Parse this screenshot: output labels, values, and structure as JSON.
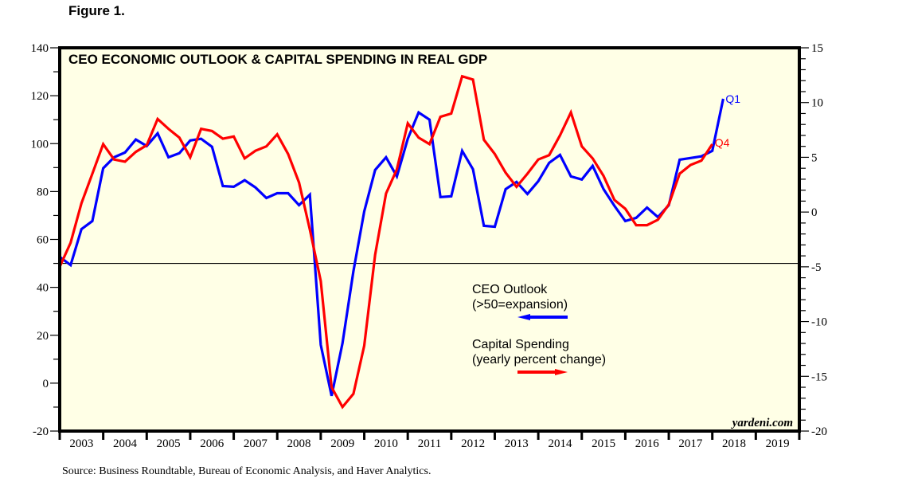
{
  "figure_label": "Figure 1.",
  "source_note": "Source: Business Roundtable, Bureau of Economic Analysis, and Haver Analytics.",
  "watermark": "yardeni.com",
  "colors": {
    "background": "#ffffe6",
    "ceo_outlook": "#0000ff",
    "capital_spending": "#ff0000",
    "frame": "#000000"
  },
  "chart_data": {
    "type": "line",
    "title": "CEO ECONOMIC OUTLOOK & CAPITAL SPENDING IN REAL GDP",
    "xlabel": "",
    "ylabel_left": "",
    "ylabel_right": "",
    "xlim": [
      2003.0,
      2020.0
    ],
    "ylim_left": [
      -20,
      140
    ],
    "ylim_right": [
      -20,
      15
    ],
    "x_tick_labels": [
      "2003",
      "2004",
      "2005",
      "2006",
      "2007",
      "2008",
      "2009",
      "2010",
      "2011",
      "2012",
      "2013",
      "2014",
      "2015",
      "2016",
      "2017",
      "2018",
      "2019"
    ],
    "y_left_ticks": [
      140,
      120,
      100,
      80,
      60,
      40,
      20,
      0,
      -20
    ],
    "y_left_tick_labels": [
      "140",
      "120",
      "100",
      "80",
      "60",
      "40",
      "20",
      "0",
      "-20"
    ],
    "y_right_ticks": [
      15,
      10,
      5,
      0,
      -5,
      -10,
      -15,
      -20
    ],
    "y_right_tick_labels": [
      "15",
      "10",
      "5",
      "0",
      "-5",
      "-10",
      "-15",
      "-20"
    ],
    "reference_line_left": 50,
    "grid": false,
    "legend": [
      {
        "series": "ceo_outlook",
        "lines": [
          "CEO Outlook",
          "(>50=expansion)"
        ],
        "arrow": "left",
        "position": "center-right"
      },
      {
        "series": "capital_spending",
        "lines": [
          "Capital Spending",
          "(yearly percent change)"
        ],
        "arrow": "right",
        "position": "center-right"
      }
    ],
    "series": [
      {
        "name": "CEO Outlook (>50=expansion)",
        "key": "ceo_outlook",
        "axis": "left",
        "end_label": "Q1",
        "start": 2003.0,
        "step": 0.25,
        "values": [
          52.7,
          49.3,
          64.3,
          67.7,
          89.7,
          94.3,
          96.3,
          101.7,
          99.0,
          104.3,
          94.3,
          96.0,
          101.3,
          102.0,
          98.7,
          82.3,
          82.0,
          84.7,
          81.7,
          77.3,
          79.3,
          79.3,
          74.3,
          78.7,
          16.0,
          -5.3,
          16.7,
          46.7,
          71.7,
          89.0,
          94.3,
          86.3,
          102.0,
          113.0,
          110.0,
          77.7,
          78.0,
          97.0,
          89.3,
          65.7,
          65.3,
          81.0,
          84.0,
          79.0,
          84.3,
          92.0,
          95.3,
          86.3,
          85.0,
          90.7,
          81.0,
          74.0,
          67.7,
          69.0,
          73.3,
          69.3,
          74.3,
          93.3,
          94.0,
          94.7,
          97.0,
          118.7
        ]
      },
      {
        "name": "Capital Spending (yearly percent change)",
        "key": "capital_spending",
        "axis": "right",
        "end_label": "Q4",
        "start": 2003.0,
        "step": 0.25,
        "values": [
          -5.0,
          -2.8,
          0.8,
          3.5,
          6.2,
          4.8,
          4.6,
          5.5,
          6.1,
          8.5,
          7.6,
          6.8,
          5.0,
          7.6,
          7.4,
          6.7,
          6.9,
          4.9,
          5.6,
          6.0,
          7.1,
          5.3,
          2.7,
          -1.6,
          -6.3,
          -16.0,
          -17.8,
          -16.6,
          -12.2,
          -3.9,
          1.7,
          3.9,
          8.1,
          6.8,
          6.2,
          8.7,
          9.0,
          12.4,
          12.1,
          6.6,
          5.3,
          3.6,
          2.3,
          3.5,
          4.8,
          5.2,
          7.0,
          9.1,
          6.0,
          4.9,
          3.3,
          1.1,
          0.3,
          -1.2,
          -1.2,
          -0.7,
          0.7,
          3.5,
          4.3,
          4.7,
          6.2
        ]
      }
    ]
  }
}
